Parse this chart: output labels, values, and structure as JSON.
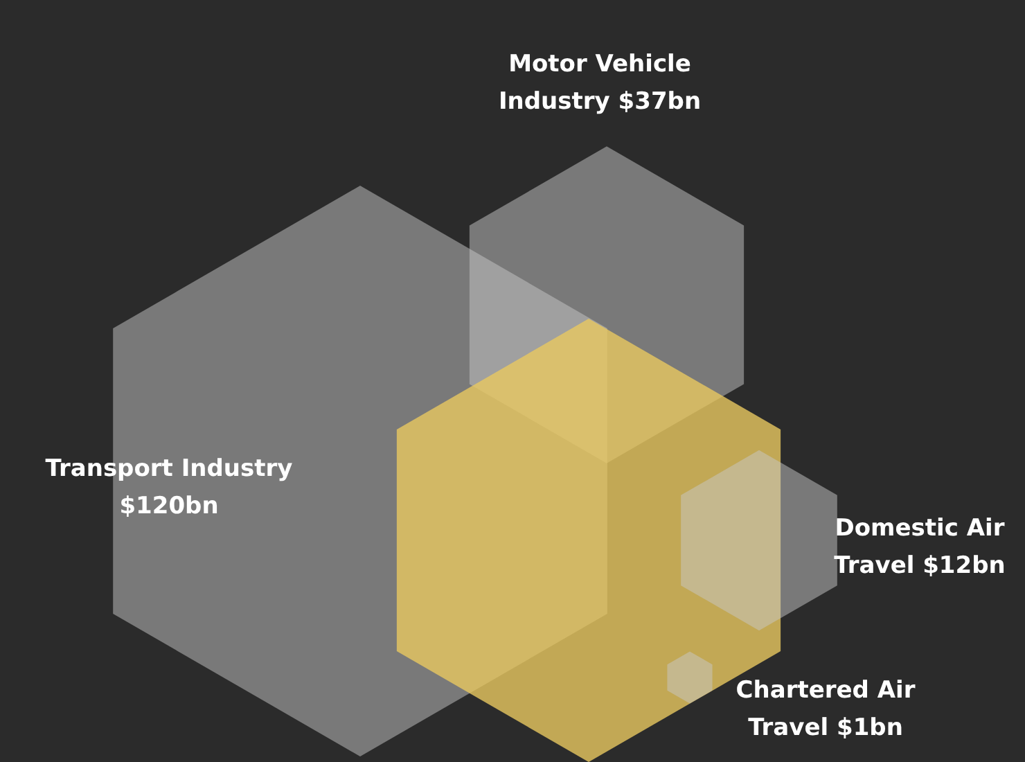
{
  "chart_data": {
    "type": "other",
    "categories": [
      "Transport Industry",
      "Motor Vehicle Industry",
      null,
      "Domestic Air Travel",
      "Chartered Air Travel"
    ],
    "values": [
      120,
      37,
      null,
      12,
      1
    ],
    "value_labels": [
      "$120bn",
      "$37bn",
      null,
      "$12bn",
      "$1bn"
    ],
    "colors": [
      "#c8c8c8",
      "#c8c8c8",
      "#e8c860",
      "#c8c8c8",
      "#c8c8c8"
    ]
  }
}
